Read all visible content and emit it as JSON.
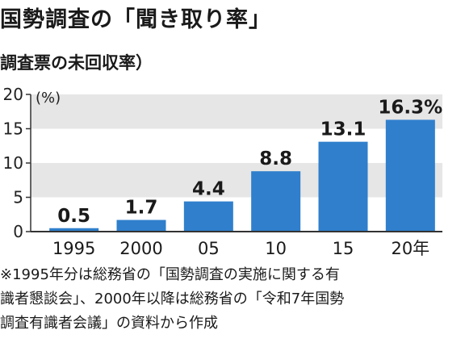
{
  "header": {
    "title": "国勢調査の「聞き取り率」",
    "subtitle": "調査票の未回収率）"
  },
  "chart_data": {
    "type": "bar",
    "categories": [
      "1995",
      "2000",
      "05",
      "10",
      "15",
      "20年"
    ],
    "values": [
      0.5,
      1.7,
      4.4,
      8.8,
      13.1,
      16.3
    ],
    "value_labels": [
      "0.5",
      "1.7",
      "4.4",
      "8.8",
      "13.1",
      "16.3%"
    ],
    "y_ticks": [
      "0",
      "5",
      "10",
      "15",
      "20"
    ],
    "y_tick_values": [
      0,
      5,
      10,
      15,
      20
    ],
    "unit": "(%)",
    "ylim": [
      0,
      20
    ],
    "grid": true,
    "colors": {
      "bar": "#2f7fcc",
      "band": "#e6e6e6",
      "axis": "#333333"
    }
  },
  "footnote": "※1995年分は総務省の「国勢調査の実施に関する有\n識者懇談会」、2000年以降は総務省の「令和7年国勢\n調査有識者会議」の資料から作成"
}
